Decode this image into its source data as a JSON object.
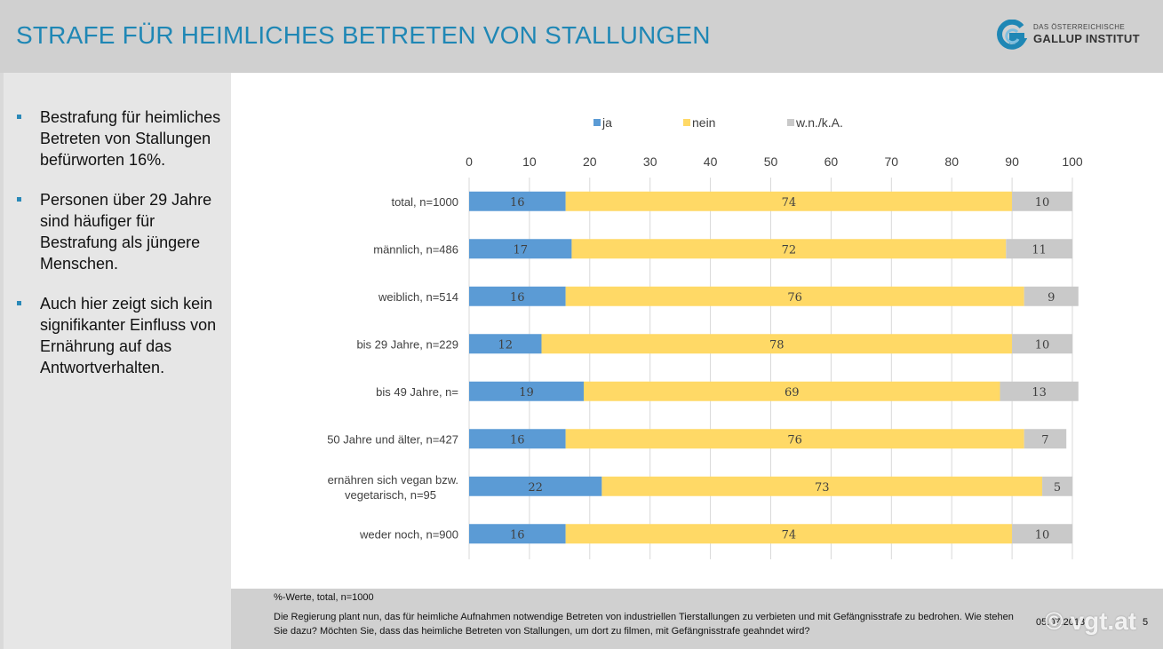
{
  "header": {
    "title": "STRAFE FÜR HEIMLICHES BETRETEN VON STALLUNGEN",
    "logo_small": "DAS ÖSTERREICHISCHE",
    "logo_main": "GALLUP INSTITUT"
  },
  "sidebar": {
    "bullets": [
      "Bestrafung für heimliches Betreten von Stallungen befürworten 16%.",
      "Personen über 29 Jahre sind häufiger für Bestrafung als jüngere Menschen.",
      "Auch hier zeigt sich kein signifikanter Einfluss von Ernährung auf das Antwortverhalten."
    ]
  },
  "footer": {
    "note": "%-Werte, total, n=1000",
    "question": "Die Regierung plant nun, das für heimliche Aufnahmen notwendige Betreten von industriellen Tierstallungen zu verbieten und mit Gefängnisstrafe zu bedrohen. Wie stehen Sie dazu? Möchten Sie, dass das heimliche Betreten von Stallungen, um dort zu filmen, mit Gefängnisstrafe geahndet wird?",
    "date": "05.07.2018",
    "page": "5"
  },
  "watermark": "© vgt.at",
  "chart_data": {
    "type": "bar",
    "orientation": "horizontal",
    "stacked": true,
    "categories": [
      "total, n=1000",
      "männlich, n=486",
      "weiblich, n=514",
      "bis 29 Jahre, n=229",
      "bis 49 Jahre, n=",
      "50 Jahre und älter, n=427",
      "ernähren sich vegan bzw. vegetarisch, n=95",
      "weder noch, n=900"
    ],
    "series": [
      {
        "name": "ja",
        "color": "#5b9bd5",
        "values": [
          16,
          17,
          16,
          12,
          19,
          16,
          22,
          16
        ]
      },
      {
        "name": "nein",
        "color": "#ffd966",
        "values": [
          74,
          72,
          76,
          78,
          69,
          76,
          73,
          74
        ]
      },
      {
        "name": "w.n./k.A.",
        "color": "#c9c9c9",
        "values": [
          10,
          11,
          9,
          10,
          13,
          7,
          5,
          10
        ]
      }
    ],
    "xlim": [
      0,
      100
    ],
    "xticks": [
      0,
      10,
      20,
      30,
      40,
      50,
      60,
      70,
      80,
      90,
      100
    ],
    "axis_position": "top",
    "grid": true,
    "legend_position": "top"
  }
}
